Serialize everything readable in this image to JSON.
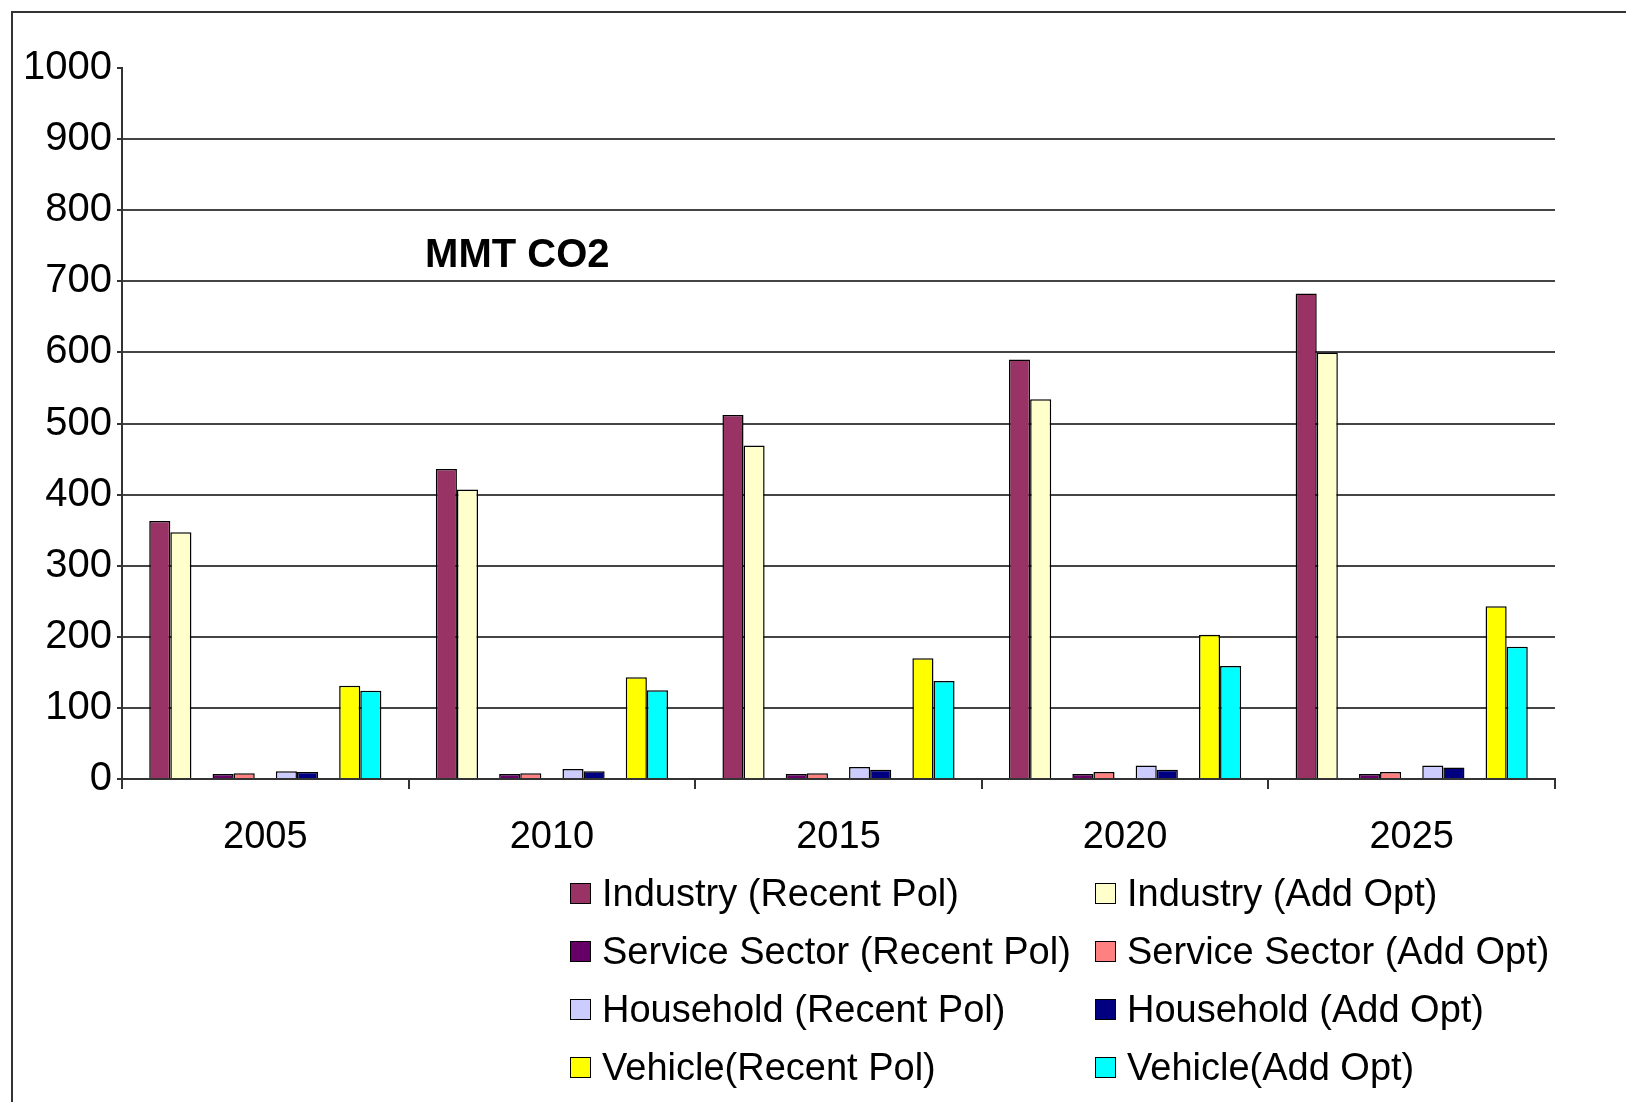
{
  "chart_data": {
    "type": "bar",
    "title": "MMT CO2",
    "categories": [
      "2005",
      "2010",
      "2015",
      "2020",
      "2025"
    ],
    "series": [
      {
        "name": "Industry (Recent Pol)",
        "color": "#993366",
        "values": [
          363,
          436,
          512,
          590,
          683
        ]
      },
      {
        "name": "Industry (Add Opt)",
        "color": "#ffffcc",
        "values": [
          347,
          407,
          469,
          534,
          600
        ]
      },
      {
        "name": "Service Sector (Recent Pol)",
        "color": "#660066",
        "values": [
          7,
          7,
          7,
          7,
          7
        ]
      },
      {
        "name": "Service Sector (Add Opt)",
        "color": "#ff8080",
        "values": [
          8,
          8,
          8,
          10,
          10
        ]
      },
      {
        "name": "Household (Recent Pol)",
        "color": "#ccccff",
        "values": [
          11,
          14,
          17,
          19,
          19
        ]
      },
      {
        "name": "Household (Add Opt)",
        "color": "#000080",
        "values": [
          10,
          11,
          13,
          13,
          16
        ]
      },
      {
        "name": "Vehicle(Recent Pol)",
        "color": "#ffff00",
        "values": [
          131,
          143,
          170,
          203,
          243
        ]
      },
      {
        "name": "Vehicle(Add Opt)",
        "color": "#00ffff",
        "values": [
          124,
          125,
          138,
          159,
          186
        ]
      }
    ],
    "ylim": [
      0,
      1000
    ],
    "yticks": [
      0,
      100,
      200,
      300,
      400,
      500,
      600,
      700,
      800,
      900,
      1000
    ],
    "grid": "y",
    "legend": "bottom"
  }
}
